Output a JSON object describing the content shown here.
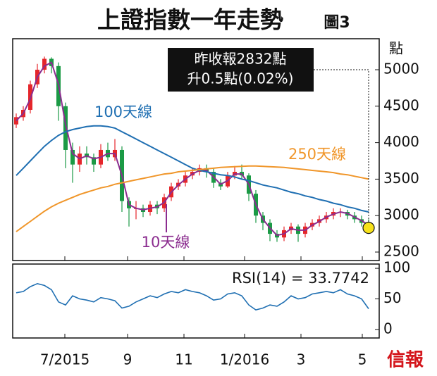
{
  "chart_data": {
    "type": "candlestick",
    "title": "上證指數一年走勢",
    "subtitle": "圖3",
    "unit": "點",
    "x": [
      0.5,
      1.5,
      2.5,
      3.5,
      4.5,
      5.5,
      6.5,
      7.5,
      8.5,
      9.5,
      10.5,
      11.5,
      12.5,
      13.5,
      14.5,
      15.5,
      16.5,
      17.5,
      18.5,
      19.5,
      20.5,
      21.5,
      22.5,
      23.5,
      24.5,
      25.5,
      26.5,
      27.5,
      28.5,
      29.5,
      30.5,
      31.5,
      32.5,
      33.5,
      34.5,
      35.5,
      36.5,
      37.5,
      38.5,
      39.5,
      40.5,
      41.5,
      42.5,
      43.5,
      44.5,
      45.5,
      46.5,
      47.5,
      48.5,
      49.5,
      50.5
    ],
    "open": [
      4250,
      4350,
      4450,
      4800,
      5000,
      5150,
      5050,
      4500,
      3900,
      3700,
      3850,
      3800,
      3700,
      3900,
      3800,
      3900,
      3200,
      3100,
      3100,
      3050,
      3150,
      3100,
      3250,
      3400,
      3450,
      3550,
      3600,
      3650,
      3600,
      3450,
      3400,
      3550,
      3600,
      3550,
      3300,
      3000,
      2900,
      2750,
      2700,
      2800,
      2850,
      2750,
      2850,
      2900,
      2950,
      3000,
      3050,
      3050,
      3000,
      2950,
      2900
    ],
    "high": [
      4400,
      4500,
      4850,
      5080,
      5180,
      5170,
      5100,
      4550,
      4000,
      3950,
      3950,
      3850,
      3980,
      4000,
      4050,
      3950,
      3250,
      3200,
      3150,
      3200,
      3200,
      3300,
      3450,
      3500,
      3600,
      3650,
      3700,
      3700,
      3650,
      3500,
      3600,
      3680,
      3700,
      3580,
      3350,
      3050,
      2950,
      2800,
      2850,
      2900,
      2880,
      2900,
      2950,
      3000,
      3050,
      3100,
      3100,
      3080,
      3050,
      3000,
      2950
    ],
    "low": [
      4200,
      4300,
      4400,
      4750,
      4950,
      4950,
      4300,
      3650,
      3450,
      3600,
      3700,
      3600,
      3650,
      3750,
      3750,
      3050,
      2850,
      2950,
      2980,
      3000,
      3020,
      3050,
      3200,
      3350,
      3400,
      3500,
      3550,
      3520,
      3380,
      3350,
      3380,
      3500,
      3500,
      3200,
      2900,
      2800,
      2650,
      2640,
      2650,
      2750,
      2640,
      2700,
      2800,
      2850,
      2900,
      2950,
      2980,
      2950,
      2900,
      2850,
      2800
    ],
    "close": [
      4350,
      4450,
      4800,
      5000,
      5150,
      5050,
      4500,
      3900,
      3700,
      3850,
      3800,
      3700,
      3900,
      3800,
      3900,
      3200,
      3100,
      3100,
      3050,
      3150,
      3100,
      3250,
      3400,
      3450,
      3550,
      3600,
      3650,
      3600,
      3450,
      3400,
      3550,
      3600,
      3550,
      3300,
      3000,
      2900,
      2750,
      2700,
      2800,
      2850,
      2750,
      2850,
      2900,
      2950,
      3000,
      3050,
      3050,
      3000,
      2950,
      2900,
      2832
    ],
    "up_color": "#e5262b",
    "down_color": "#1b9a45",
    "xlim": [
      0,
      52
    ],
    "xticks": [
      {
        "value": 7.4,
        "label": "7/2015"
      },
      {
        "value": 16.3,
        "label": "9"
      },
      {
        "value": 24.3,
        "label": "11"
      },
      {
        "value": 32.9,
        "label": "1/2016"
      },
      {
        "value": 40.9,
        "label": "3"
      },
      {
        "value": 49.6,
        "label": "5"
      }
    ],
    "ylim": [
      2384,
      5425
    ],
    "yticks": [
      2500,
      3000,
      3500,
      4000,
      4500,
      5000
    ],
    "lines": [
      {
        "name": "10天線",
        "color": "#8b2c8f",
        "values": [
          4300,
          4400,
          4600,
          4900,
          5050,
          5100,
          4800,
          4250,
          3850,
          3780,
          3820,
          3780,
          3800,
          3850,
          3850,
          3550,
          3150,
          3100,
          3080,
          3100,
          3120,
          3180,
          3320,
          3420,
          3500,
          3570,
          3620,
          3620,
          3530,
          3430,
          3480,
          3570,
          3570,
          3430,
          3150,
          2950,
          2830,
          2730,
          2750,
          2820,
          2800,
          2800,
          2870,
          2920,
          2980,
          3020,
          3050,
          3030,
          2980,
          2930,
          2870
        ]
      },
      {
        "name": "100天線",
        "color": "#1f6fb2",
        "values": [
          3550,
          3650,
          3750,
          3850,
          3950,
          4030,
          4100,
          4150,
          4180,
          4200,
          4220,
          4230,
          4230,
          4220,
          4200,
          4150,
          4100,
          4050,
          4000,
          3950,
          3900,
          3850,
          3800,
          3750,
          3700,
          3650,
          3620,
          3600,
          3580,
          3560,
          3550,
          3530,
          3500,
          3480,
          3450,
          3420,
          3400,
          3380,
          3350,
          3320,
          3300,
          3270,
          3250,
          3220,
          3200,
          3170,
          3150,
          3120,
          3100,
          3070,
          3050
        ]
      },
      {
        "name": "250天線",
        "color": "#f0962a",
        "values": [
          2780,
          2850,
          2920,
          2990,
          3060,
          3120,
          3170,
          3210,
          3250,
          3290,
          3320,
          3350,
          3380,
          3400,
          3430,
          3450,
          3470,
          3490,
          3510,
          3530,
          3550,
          3570,
          3580,
          3600,
          3610,
          3620,
          3630,
          3640,
          3650,
          3660,
          3665,
          3670,
          3675,
          3680,
          3680,
          3675,
          3670,
          3665,
          3660,
          3650,
          3640,
          3630,
          3620,
          3610,
          3600,
          3590,
          3570,
          3560,
          3540,
          3520,
          3500
        ]
      }
    ],
    "annotation": [
      "昨收報2832點",
      "升0.5點(0.02%)"
    ],
    "rsi": {
      "label": "RSI(14) = 33.7742",
      "color": "#1f6fb2",
      "values": [
        60,
        62,
        70,
        75,
        72,
        65,
        45,
        40,
        55,
        50,
        48,
        45,
        52,
        50,
        47,
        35,
        38,
        45,
        50,
        55,
        52,
        58,
        62,
        60,
        65,
        62,
        60,
        55,
        48,
        50,
        58,
        60,
        55,
        40,
        32,
        35,
        40,
        38,
        45,
        55,
        50,
        52,
        58,
        60,
        62,
        60,
        65,
        58,
        55,
        50,
        33.7742
      ],
      "ylim": [
        -14,
        107
      ],
      "yticks": [
        0,
        50,
        100
      ]
    },
    "source": "信報"
  }
}
